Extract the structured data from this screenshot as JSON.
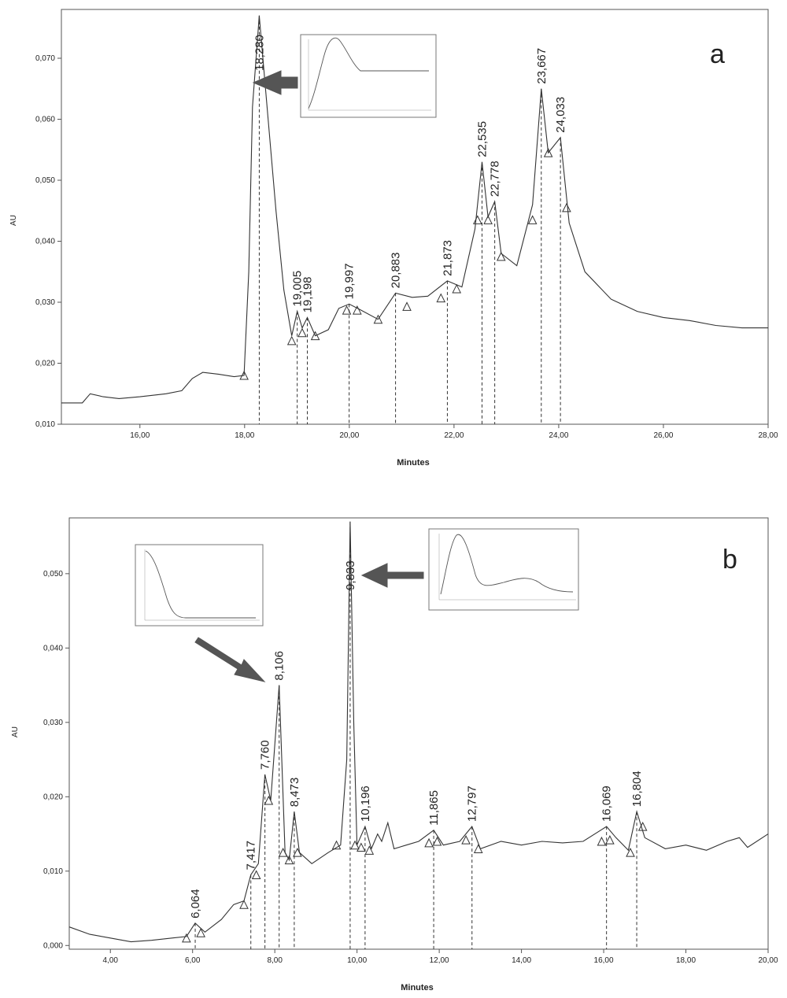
{
  "chart_data": [
    {
      "type": "line",
      "panel_label": "a",
      "xlabel": "Minutes",
      "ylabel": "AU",
      "xlim": [
        14.5,
        28.0
      ],
      "ylim": [
        0.01,
        0.078
      ],
      "x_ticks": [
        16,
        18,
        20,
        22,
        24,
        26,
        28
      ],
      "x_tick_labels": [
        "16,00",
        "18,00",
        "20,00",
        "22,00",
        "24,00",
        "26,00",
        "28,00"
      ],
      "y_ticks": [
        0.01,
        0.02,
        0.03,
        0.04,
        0.05,
        0.06,
        0.07
      ],
      "y_tick_labels": [
        "0,010",
        "0,020",
        "0,030",
        "0,040",
        "0,050",
        "0,060",
        "0,070"
      ],
      "peak_labels": [
        "18,280",
        "19,005",
        "19,198",
        "19,997",
        "20,883",
        "21,873",
        "22,535",
        "22,778",
        "23,667",
        "24,033"
      ],
      "peaks": [
        {
          "rt": 18.28,
          "au": 0.077
        },
        {
          "rt": 19.005,
          "au": 0.0285
        },
        {
          "rt": 19.198,
          "au": 0.0275
        },
        {
          "rt": 19.997,
          "au": 0.0297
        },
        {
          "rt": 20.883,
          "au": 0.0315
        },
        {
          "rt": 21.873,
          "au": 0.0335
        },
        {
          "rt": 22.535,
          "au": 0.053
        },
        {
          "rt": 22.778,
          "au": 0.0465
        },
        {
          "rt": 23.667,
          "au": 0.065
        },
        {
          "rt": 24.033,
          "au": 0.057
        }
      ],
      "baseline_markers": [
        [
          17.99,
          0.018
        ],
        [
          18.9,
          0.0237
        ],
        [
          19.1,
          0.025
        ],
        [
          19.35,
          0.0245
        ],
        [
          19.95,
          0.0287
        ],
        [
          20.15,
          0.0287
        ],
        [
          20.55,
          0.0272
        ],
        [
          21.1,
          0.0293
        ],
        [
          21.75,
          0.0307
        ],
        [
          22.05,
          0.0322
        ],
        [
          22.45,
          0.0435
        ],
        [
          22.65,
          0.0435
        ],
        [
          22.9,
          0.0375
        ],
        [
          23.5,
          0.0435
        ],
        [
          23.8,
          0.0545
        ],
        [
          24.15,
          0.0455
        ]
      ],
      "trace": [
        [
          14.5,
          0.0135
        ],
        [
          14.9,
          0.0135
        ],
        [
          15.05,
          0.015
        ],
        [
          15.3,
          0.0145
        ],
        [
          15.6,
          0.0142
        ],
        [
          16.0,
          0.0145
        ],
        [
          16.5,
          0.015
        ],
        [
          16.8,
          0.0155
        ],
        [
          17.0,
          0.0175
        ],
        [
          17.2,
          0.0185
        ],
        [
          17.5,
          0.0182
        ],
        [
          17.8,
          0.0178
        ],
        [
          17.99,
          0.018
        ],
        [
          18.08,
          0.035
        ],
        [
          18.15,
          0.062
        ],
        [
          18.28,
          0.077
        ],
        [
          18.45,
          0.06
        ],
        [
          18.6,
          0.045
        ],
        [
          18.75,
          0.032
        ],
        [
          18.9,
          0.0245
        ],
        [
          19.005,
          0.0285
        ],
        [
          19.1,
          0.0258
        ],
        [
          19.198,
          0.0275
        ],
        [
          19.35,
          0.0245
        ],
        [
          19.6,
          0.0255
        ],
        [
          19.8,
          0.029
        ],
        [
          19.997,
          0.0297
        ],
        [
          20.2,
          0.0288
        ],
        [
          20.55,
          0.0272
        ],
        [
          20.883,
          0.0315
        ],
        [
          21.2,
          0.0308
        ],
        [
          21.5,
          0.031
        ],
        [
          21.873,
          0.0335
        ],
        [
          22.15,
          0.0325
        ],
        [
          22.4,
          0.042
        ],
        [
          22.535,
          0.053
        ],
        [
          22.65,
          0.044
        ],
        [
          22.778,
          0.0465
        ],
        [
          22.9,
          0.038
        ],
        [
          23.2,
          0.036
        ],
        [
          23.5,
          0.046
        ],
        [
          23.667,
          0.065
        ],
        [
          23.8,
          0.0545
        ],
        [
          24.033,
          0.057
        ],
        [
          24.2,
          0.043
        ],
        [
          24.5,
          0.035
        ],
        [
          25.0,
          0.0305
        ],
        [
          25.5,
          0.0285
        ],
        [
          26.0,
          0.0275
        ],
        [
          26.5,
          0.027
        ],
        [
          27.0,
          0.0262
        ],
        [
          27.5,
          0.0258
        ],
        [
          28.0,
          0.0258
        ]
      ],
      "inset_present": true
    },
    {
      "type": "line",
      "panel_label": "b",
      "xlabel": "Minutes",
      "ylabel": "AU",
      "xlim": [
        3.0,
        20.0
      ],
      "ylim": [
        -0.0005,
        0.0575
      ],
      "x_ticks": [
        4,
        6,
        8,
        10,
        12,
        14,
        16,
        18,
        20
      ],
      "x_tick_labels": [
        "4,00",
        "6,00",
        "8,00",
        "10,00",
        "12,00",
        "14,00",
        "16,00",
        "18,00",
        "20,00"
      ],
      "y_ticks": [
        0.0,
        0.01,
        0.02,
        0.03,
        0.04,
        0.05
      ],
      "y_tick_labels": [
        "0,000",
        "0,010",
        "0,020",
        "0,030",
        "0,040",
        "0,050"
      ],
      "peak_labels": [
        "6,064",
        "7,417",
        "7,760",
        "8,106",
        "8,473",
        "9,833",
        "10,196",
        "11,865",
        "12,797",
        "16,069",
        "16,804"
      ],
      "peaks": [
        {
          "rt": 6.064,
          "au": 0.003
        },
        {
          "rt": 7.417,
          "au": 0.0095
        },
        {
          "rt": 7.76,
          "au": 0.023
        },
        {
          "rt": 8.106,
          "au": 0.035
        },
        {
          "rt": 8.473,
          "au": 0.018
        },
        {
          "rt": 9.833,
          "au": 0.057
        },
        {
          "rt": 10.196,
          "au": 0.016
        },
        {
          "rt": 11.865,
          "au": 0.0155
        },
        {
          "rt": 12.797,
          "au": 0.016
        },
        {
          "rt": 16.069,
          "au": 0.016
        },
        {
          "rt": 16.804,
          "au": 0.018
        }
      ],
      "baseline_markers": [
        [
          5.85,
          0.001
        ],
        [
          6.2,
          0.0017
        ],
        [
          7.25,
          0.0055
        ],
        [
          7.55,
          0.0095
        ],
        [
          7.85,
          0.0195
        ],
        [
          8.2,
          0.0125
        ],
        [
          8.35,
          0.0115
        ],
        [
          8.55,
          0.0125
        ],
        [
          9.5,
          0.0135
        ],
        [
          9.95,
          0.0135
        ],
        [
          10.1,
          0.0132
        ],
        [
          10.3,
          0.0128
        ],
        [
          11.75,
          0.0138
        ],
        [
          11.95,
          0.014
        ],
        [
          12.65,
          0.0142
        ],
        [
          12.95,
          0.013
        ],
        [
          15.95,
          0.014
        ],
        [
          16.15,
          0.0142
        ],
        [
          16.65,
          0.0125
        ],
        [
          16.95,
          0.016
        ]
      ],
      "trace": [
        [
          3.0,
          0.0025
        ],
        [
          3.5,
          0.0015
        ],
        [
          4.0,
          0.001
        ],
        [
          4.5,
          0.0005
        ],
        [
          5.0,
          0.0007
        ],
        [
          5.5,
          0.001
        ],
        [
          5.85,
          0.0012
        ],
        [
          6.064,
          0.003
        ],
        [
          6.3,
          0.0018
        ],
        [
          6.7,
          0.0035
        ],
        [
          7.0,
          0.0055
        ],
        [
          7.25,
          0.006
        ],
        [
          7.417,
          0.0095
        ],
        [
          7.6,
          0.011
        ],
        [
          7.76,
          0.023
        ],
        [
          7.9,
          0.0195
        ],
        [
          8.106,
          0.035
        ],
        [
          8.25,
          0.0125
        ],
        [
          8.35,
          0.0115
        ],
        [
          8.473,
          0.018
        ],
        [
          8.6,
          0.0125
        ],
        [
          8.9,
          0.011
        ],
        [
          9.3,
          0.0125
        ],
        [
          9.6,
          0.0135
        ],
        [
          9.75,
          0.025
        ],
        [
          9.833,
          0.057
        ],
        [
          9.92,
          0.03
        ],
        [
          10.0,
          0.0135
        ],
        [
          10.196,
          0.016
        ],
        [
          10.35,
          0.013
        ],
        [
          10.5,
          0.015
        ],
        [
          10.6,
          0.014
        ],
        [
          10.75,
          0.0165
        ],
        [
          10.9,
          0.013
        ],
        [
          11.2,
          0.0135
        ],
        [
          11.5,
          0.014
        ],
        [
          11.865,
          0.0155
        ],
        [
          12.1,
          0.0135
        ],
        [
          12.5,
          0.014
        ],
        [
          12.797,
          0.016
        ],
        [
          13.0,
          0.013
        ],
        [
          13.5,
          0.014
        ],
        [
          14.0,
          0.0135
        ],
        [
          14.5,
          0.014
        ],
        [
          15.0,
          0.0138
        ],
        [
          15.5,
          0.014
        ],
        [
          16.069,
          0.016
        ],
        [
          16.3,
          0.0145
        ],
        [
          16.6,
          0.0128
        ],
        [
          16.804,
          0.018
        ],
        [
          17.0,
          0.0145
        ],
        [
          17.5,
          0.013
        ],
        [
          18.0,
          0.0135
        ],
        [
          18.5,
          0.0128
        ],
        [
          19.0,
          0.014
        ],
        [
          19.3,
          0.0145
        ],
        [
          19.5,
          0.0132
        ],
        [
          20.0,
          0.015
        ]
      ],
      "insets_present": 2
    }
  ]
}
